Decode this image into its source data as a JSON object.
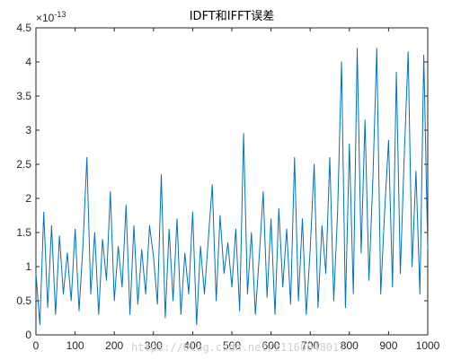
{
  "chart_data": {
    "type": "line",
    "title": "IDFT和IFFT误差",
    "xlabel": "",
    "ylabel": "",
    "xlim": [
      0,
      1000
    ],
    "ylim": [
      0,
      4.5
    ],
    "y_exponent_label": "×10",
    "y_exponent_power": "-13",
    "x_ticks": [
      "0",
      "100",
      "200",
      "300",
      "400",
      "500",
      "600",
      "700",
      "800",
      "900",
      "1000"
    ],
    "y_ticks": [
      "0",
      "0.5",
      "1",
      "1.5",
      "2",
      "2.5",
      "3",
      "3.5",
      "4",
      "4.5"
    ],
    "grid": false,
    "series": [
      {
        "color": "#0072BD",
        "x": [
          0,
          10,
          20,
          30,
          40,
          50,
          60,
          70,
          80,
          90,
          100,
          110,
          120,
          130,
          140,
          150,
          160,
          170,
          180,
          190,
          200,
          210,
          220,
          230,
          240,
          250,
          260,
          270,
          280,
          290,
          300,
          310,
          320,
          330,
          340,
          350,
          360,
          370,
          380,
          390,
          400,
          410,
          420,
          430,
          440,
          450,
          460,
          470,
          480,
          490,
          500,
          510,
          520,
          530,
          540,
          550,
          560,
          570,
          580,
          590,
          600,
          610,
          620,
          630,
          640,
          650,
          660,
          670,
          680,
          690,
          700,
          710,
          720,
          730,
          740,
          750,
          760,
          770,
          780,
          790,
          800,
          810,
          820,
          830,
          840,
          850,
          860,
          870,
          880,
          890,
          900,
          910,
          920,
          930,
          940,
          950,
          960,
          970,
          980,
          990,
          1000
        ],
        "y": [
          0.9,
          0.15,
          1.8,
          0.4,
          1.6,
          0.3,
          1.45,
          0.6,
          1.2,
          0.5,
          1.55,
          0.35,
          1.3,
          2.6,
          0.6,
          1.5,
          0.3,
          1.4,
          0.8,
          2.1,
          0.5,
          1.3,
          0.7,
          1.9,
          0.3,
          1.6,
          0.45,
          1.25,
          0.6,
          1.6,
          1.15,
          0.45,
          2.35,
          0.25,
          1.55,
          0.5,
          1.7,
          0.3,
          1.2,
          0.6,
          1.8,
          0.15,
          1.3,
          0.6,
          1.4,
          2.2,
          0.5,
          1.75,
          0.9,
          1.35,
          0.7,
          1.55,
          0.35,
          2.95,
          0.6,
          1.5,
          0.3,
          1.15,
          2.1,
          0.55,
          1.7,
          0.3,
          1.85,
          0.7,
          1.55,
          0.45,
          2.6,
          0.5,
          1.7,
          0.3,
          1.25,
          2.5,
          0.4,
          1.6,
          0.9,
          2.6,
          0.5,
          1.8,
          4.0,
          0.4,
          2.8,
          0.6,
          4.2,
          1.2,
          3.15,
          0.8,
          2.3,
          4.2,
          0.6,
          1.8,
          2.85,
          0.7,
          3.85,
          0.9,
          2.6,
          4.15,
          1.0,
          2.4,
          0.6,
          4.1,
          1.25
        ]
      }
    ]
  },
  "watermark": "https://blog.csdn.net/z1160048017"
}
